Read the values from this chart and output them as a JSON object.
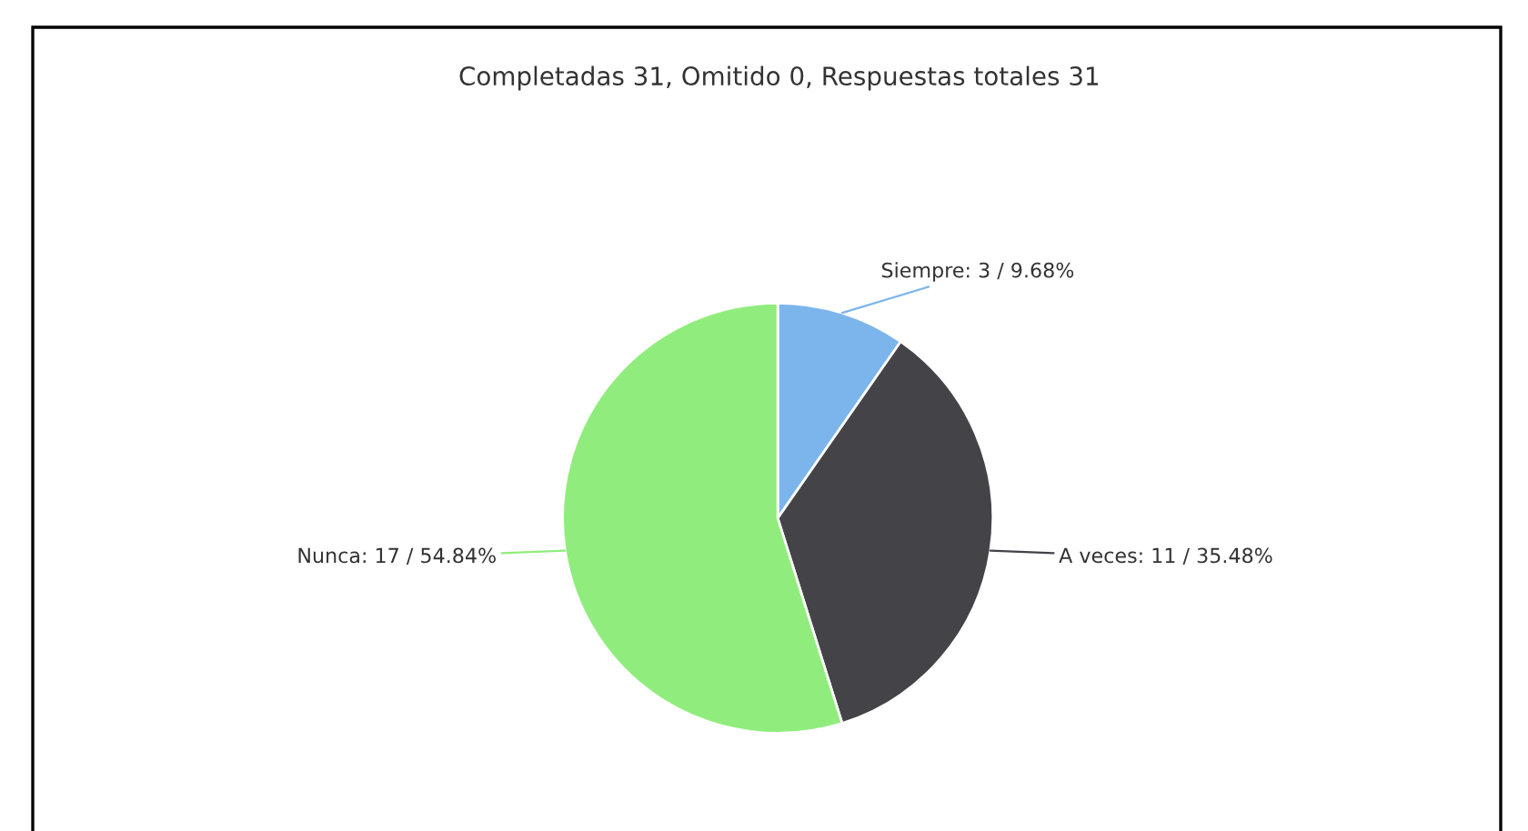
{
  "chart_data": {
    "type": "pie",
    "title": "Completadas 31, Omitido 0, Respuestas totales 31",
    "categories": [
      "Siempre",
      "A veces",
      "Nunca"
    ],
    "values": [
      3,
      11,
      17
    ],
    "value_labels": [
      "3 / 9.68%",
      "11 / 35.48%",
      "17 / 54.84%"
    ],
    "colors": [
      "#7cb5ec",
      "#434348",
      "#90ed7d"
    ]
  }
}
